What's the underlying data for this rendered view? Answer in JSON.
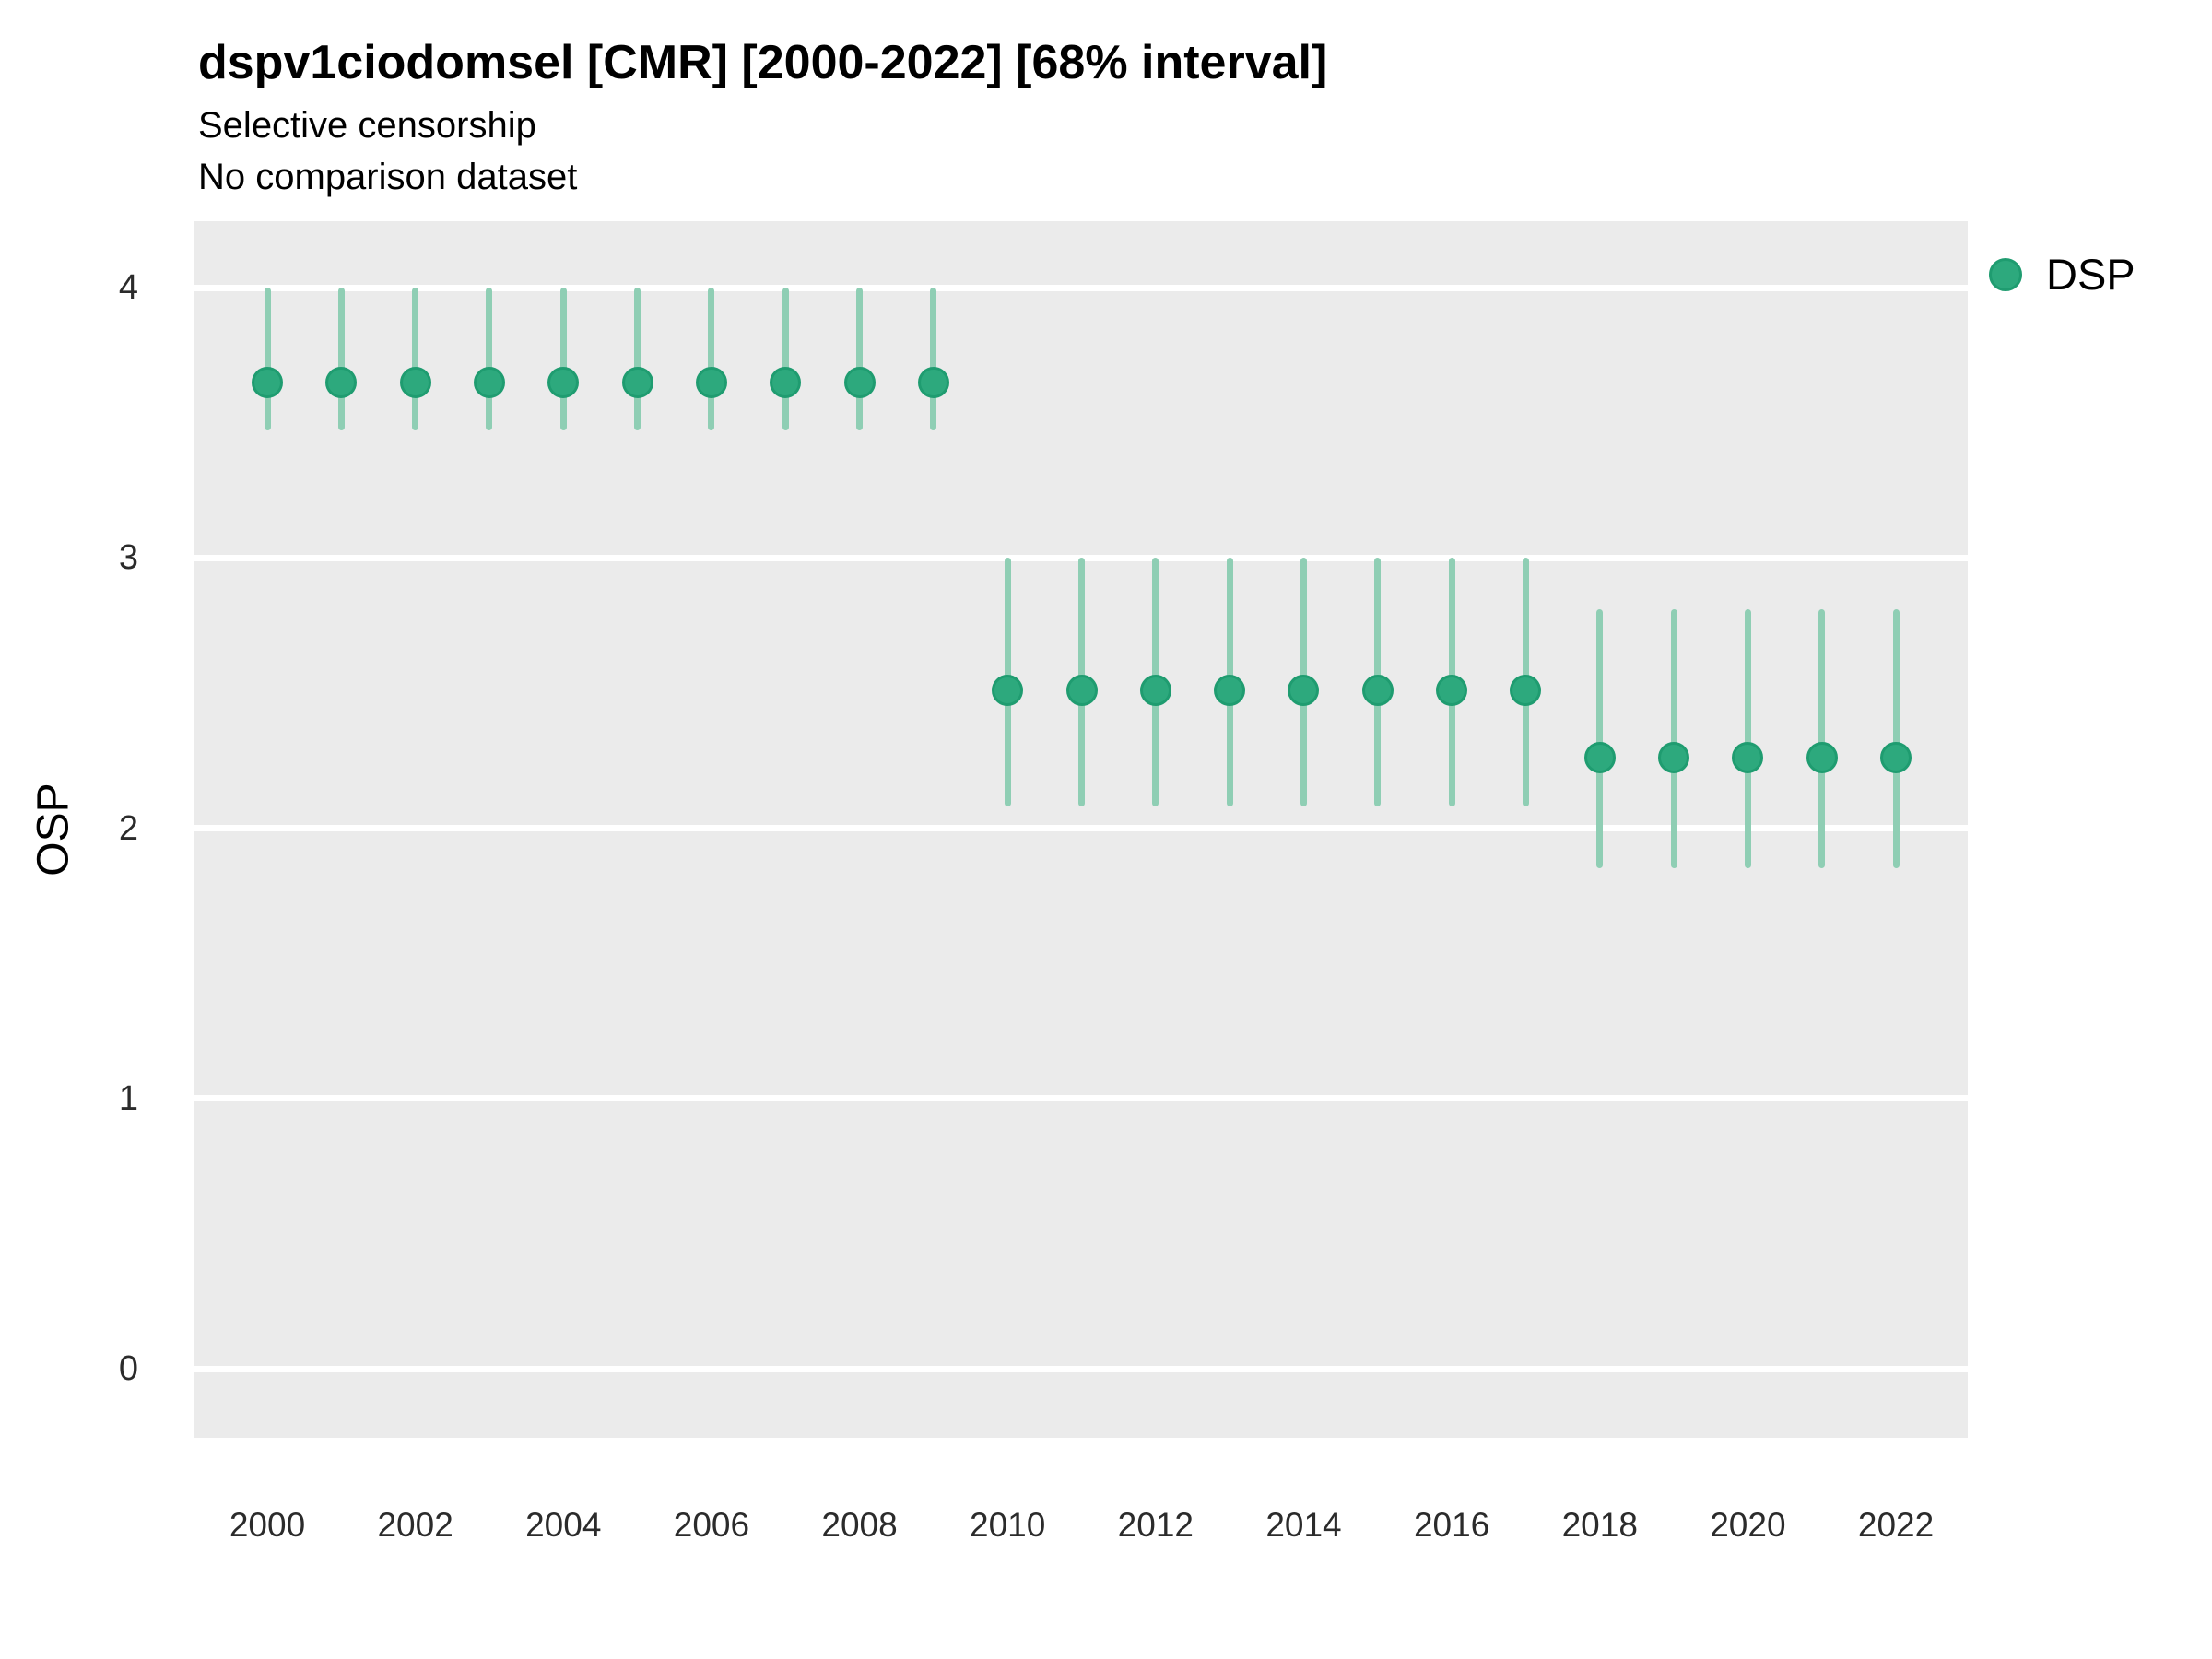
{
  "header": {
    "title": "dspv1ciodomsel [CMR] [2000-2022] [68% interval]",
    "subtitle_line1": "Selective censorship",
    "subtitle_line2": "No comparison dataset"
  },
  "y_axis": {
    "title": "OSP",
    "tick_labels": [
      "4",
      "3",
      "2",
      "1",
      "0"
    ],
    "tick_values": [
      4,
      3,
      2,
      1,
      0
    ]
  },
  "x_axis": {
    "tick_values": [
      2000,
      2002,
      2004,
      2006,
      2008,
      2010,
      2012,
      2014,
      2016,
      2018,
      2020,
      2022
    ]
  },
  "legend": {
    "entries": [
      {
        "label": "DSP",
        "marker": "circle-icon",
        "color": "#2DA97D"
      }
    ]
  },
  "colors": {
    "panel_background": "#EBEBEB",
    "gridline": "#FFFFFF",
    "point_fill": "#2DA97D",
    "point_border": "#1F9C70",
    "interval_bar": "#8FCEB4",
    "text": "#000000",
    "tick_text": "#2b2b2b"
  },
  "chart_data": {
    "type": "pointrange",
    "title": "dspv1ciodomsel [CMR] [2000-2022] [68% interval]",
    "subtitle": [
      "Selective censorship",
      "No comparison dataset"
    ],
    "xlabel": "",
    "ylabel": "OSP",
    "ylim": [
      -0.26,
      4.25
    ],
    "xlim": [
      1999,
      2023
    ],
    "y_ticks": [
      0,
      1,
      2,
      3,
      4
    ],
    "x_ticks": [
      2000,
      2002,
      2004,
      2006,
      2008,
      2010,
      2012,
      2014,
      2016,
      2018,
      2020,
      2022
    ],
    "grid": "horizontal-major-only",
    "legend_position": "right-top",
    "interval_level": "68%",
    "series": [
      {
        "name": "DSP",
        "points": [
          {
            "year": 2000,
            "estimate": 3.65,
            "lower": 3.47,
            "upper": 4.0
          },
          {
            "year": 2001,
            "estimate": 3.65,
            "lower": 3.47,
            "upper": 4.0
          },
          {
            "year": 2002,
            "estimate": 3.65,
            "lower": 3.47,
            "upper": 4.0
          },
          {
            "year": 2003,
            "estimate": 3.65,
            "lower": 3.47,
            "upper": 4.0
          },
          {
            "year": 2004,
            "estimate": 3.65,
            "lower": 3.47,
            "upper": 4.0
          },
          {
            "year": 2005,
            "estimate": 3.65,
            "lower": 3.47,
            "upper": 4.0
          },
          {
            "year": 2006,
            "estimate": 3.65,
            "lower": 3.47,
            "upper": 4.0
          },
          {
            "year": 2007,
            "estimate": 3.65,
            "lower": 3.47,
            "upper": 4.0
          },
          {
            "year": 2008,
            "estimate": 3.65,
            "lower": 3.47,
            "upper": 4.0
          },
          {
            "year": 2009,
            "estimate": 3.65,
            "lower": 3.47,
            "upper": 4.0
          },
          {
            "year": 2010,
            "estimate": 2.51,
            "lower": 2.08,
            "upper": 3.0
          },
          {
            "year": 2011,
            "estimate": 2.51,
            "lower": 2.08,
            "upper": 3.0
          },
          {
            "year": 2012,
            "estimate": 2.51,
            "lower": 2.08,
            "upper": 3.0
          },
          {
            "year": 2013,
            "estimate": 2.51,
            "lower": 2.08,
            "upper": 3.0
          },
          {
            "year": 2014,
            "estimate": 2.51,
            "lower": 2.08,
            "upper": 3.0
          },
          {
            "year": 2015,
            "estimate": 2.51,
            "lower": 2.08,
            "upper": 3.0
          },
          {
            "year": 2016,
            "estimate": 2.51,
            "lower": 2.08,
            "upper": 3.0
          },
          {
            "year": 2017,
            "estimate": 2.51,
            "lower": 2.08,
            "upper": 3.0
          },
          {
            "year": 2018,
            "estimate": 2.26,
            "lower": 1.85,
            "upper": 2.81
          },
          {
            "year": 2019,
            "estimate": 2.26,
            "lower": 1.85,
            "upper": 2.81
          },
          {
            "year": 2020,
            "estimate": 2.26,
            "lower": 1.85,
            "upper": 2.81
          },
          {
            "year": 2021,
            "estimate": 2.26,
            "lower": 1.85,
            "upper": 2.81
          },
          {
            "year": 2022,
            "estimate": 2.26,
            "lower": 1.85,
            "upper": 2.81
          }
        ]
      }
    ]
  }
}
